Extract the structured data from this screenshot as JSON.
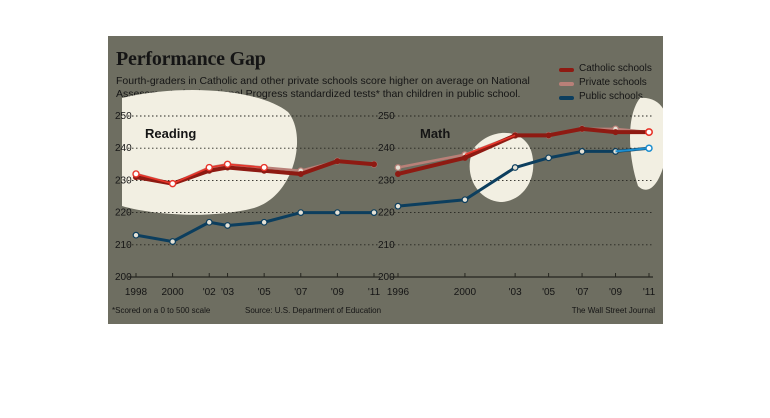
{
  "header": {
    "title": "Performance Gap",
    "subtitle_line1": "Fourth-graders in Catholic and other private schools score higher on average on National",
    "subtitle_line2": "Assessment of Educational Progress standardized tests* than children in public school."
  },
  "legend": [
    {
      "label": "Catholic schools",
      "color": "#8e1a12"
    },
    {
      "label": "Private schools",
      "color": "#b98078"
    },
    {
      "label": "Public schools",
      "color": "#0c3e5e"
    }
  ],
  "footer": {
    "footnote": "*Scored on a 0 to 500 scale",
    "source": "Source: U.S. Department of Education",
    "credit": "The Wall Street Journal"
  },
  "colors": {
    "background": "#6e6e61",
    "highlight": "#f2efe2",
    "catholic": "#8e1a12",
    "private": "#b98078",
    "public": "#0c3e5e",
    "accent_red": "#e8352a",
    "accent_blue": "#1d8fd0"
  },
  "chart_data": [
    {
      "type": "line",
      "title": "Reading",
      "yticks": [
        "200",
        "210",
        "220",
        "230",
        "240",
        "250"
      ],
      "ylim": [
        200,
        250
      ],
      "x_tick_labels": [
        {
          "x": 1998,
          "label": "1998"
        },
        {
          "x": 2000,
          "label": "2000"
        },
        {
          "x": 2002,
          "label": "'02"
        },
        {
          "x": 2003,
          "label": "'03"
        },
        {
          "x": 2005,
          "label": "'05"
        },
        {
          "x": 2007,
          "label": "'07"
        },
        {
          "x": 2009,
          "label": "'09"
        },
        {
          "x": 2011,
          "label": "'11"
        }
      ],
      "xlim": [
        1998,
        2011
      ],
      "series": [
        {
          "name": "Private schools",
          "x": [
            1998,
            2000,
            2002,
            2003,
            2005,
            2007,
            2009,
            2011
          ],
          "values": [
            232,
            229,
            234,
            235,
            234,
            233,
            236,
            235
          ]
        },
        {
          "name": "Catholic schools",
          "x": [
            1998,
            2000,
            2002,
            2003,
            2005,
            2007,
            2009,
            2011
          ],
          "values": [
            231,
            229,
            233,
            234,
            233,
            232,
            236,
            235
          ]
        },
        {
          "name": "Public schools",
          "x": [
            1998,
            2000,
            2002,
            2003,
            2005,
            2007,
            2009,
            2011
          ],
          "values": [
            213,
            211,
            217,
            216,
            217,
            220,
            220,
            220
          ]
        }
      ]
    },
    {
      "type": "line",
      "title": "Math",
      "yticks": [
        "200",
        "210",
        "220",
        "230",
        "240",
        "250"
      ],
      "ylim": [
        200,
        250
      ],
      "x_tick_labels": [
        {
          "x": 1996,
          "label": "1996"
        },
        {
          "x": 2000,
          "label": "2000"
        },
        {
          "x": 2003,
          "label": "'03"
        },
        {
          "x": 2005,
          "label": "'05"
        },
        {
          "x": 2007,
          "label": "'07"
        },
        {
          "x": 2009,
          "label": "'09"
        },
        {
          "x": 2011,
          "label": "'11"
        }
      ],
      "xlim": [
        1996,
        2011
      ],
      "series": [
        {
          "name": "Private schools",
          "x": [
            1996,
            2000,
            2003,
            2005,
            2007,
            2009,
            2011
          ],
          "values": [
            234,
            238,
            244,
            244,
            246,
            246,
            245
          ]
        },
        {
          "name": "Catholic schools",
          "x": [
            1996,
            2000,
            2003,
            2005,
            2007,
            2009,
            2011
          ],
          "values": [
            232,
            237,
            244,
            244,
            246,
            245,
            245
          ]
        },
        {
          "name": "Public schools",
          "x": [
            1996,
            2000,
            2003,
            2005,
            2007,
            2009,
            2011
          ],
          "values": [
            222,
            224,
            234,
            237,
            239,
            239,
            240
          ]
        }
      ]
    }
  ]
}
